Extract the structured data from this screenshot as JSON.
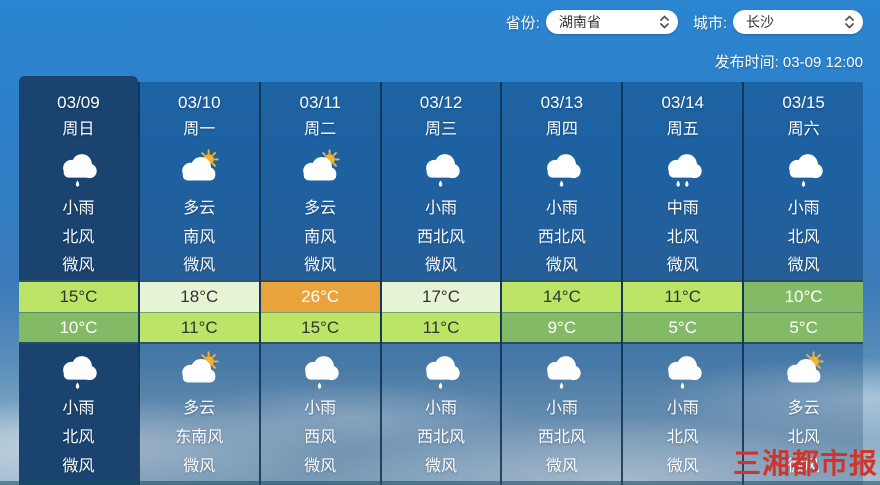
{
  "header": {
    "province_label": "省份:",
    "province_value": "湖南省",
    "city_label": "城市:",
    "city_value": "长沙",
    "dropdown_icon": "chevron-up-down",
    "publish_label": "发布时间:",
    "publish_value": "03-09 12:00"
  },
  "watermark": "三湘都市报",
  "colors": {
    "accent_red": "#d2342a",
    "today_column": "#1a436f",
    "temp_pale": "#e7f3d5",
    "temp_light": "#bce467",
    "temp_medium": "#83ba66",
    "temp_orange": "#e8a33d"
  },
  "forecast": {
    "days": [
      {
        "date": "03/09",
        "week": "周日",
        "today": true,
        "day": {
          "icon": "light-rain",
          "condition": "小雨",
          "wind_direction": "北风",
          "wind_power": "微风"
        },
        "high": "15°C",
        "high_level": "light",
        "low": "10°C",
        "low_level": "medium",
        "night": {
          "icon": "light-rain",
          "condition": "小雨",
          "wind_direction": "北风",
          "wind_power": "微风"
        }
      },
      {
        "date": "03/10",
        "week": "周一",
        "today": false,
        "day": {
          "icon": "partly-cloudy",
          "condition": "多云",
          "wind_direction": "南风",
          "wind_power": "微风"
        },
        "high": "18°C",
        "high_level": "pale",
        "low": "11°C",
        "low_level": "light",
        "night": {
          "icon": "partly-cloudy",
          "condition": "多云",
          "wind_direction": "东南风",
          "wind_power": "微风"
        }
      },
      {
        "date": "03/11",
        "week": "周二",
        "today": false,
        "day": {
          "icon": "partly-cloudy",
          "condition": "多云",
          "wind_direction": "南风",
          "wind_power": "微风"
        },
        "high": "26°C",
        "high_level": "orange",
        "low": "15°C",
        "low_level": "light",
        "night": {
          "icon": "light-rain",
          "condition": "小雨",
          "wind_direction": "西风",
          "wind_power": "微风"
        }
      },
      {
        "date": "03/12",
        "week": "周三",
        "today": false,
        "day": {
          "icon": "light-rain",
          "condition": "小雨",
          "wind_direction": "西北风",
          "wind_power": "微风"
        },
        "high": "17°C",
        "high_level": "pale",
        "low": "11°C",
        "low_level": "light",
        "night": {
          "icon": "light-rain",
          "condition": "小雨",
          "wind_direction": "西北风",
          "wind_power": "微风"
        }
      },
      {
        "date": "03/13",
        "week": "周四",
        "today": false,
        "day": {
          "icon": "light-rain",
          "condition": "小雨",
          "wind_direction": "西北风",
          "wind_power": "微风"
        },
        "high": "14°C",
        "high_level": "light",
        "low": "9°C",
        "low_level": "medium",
        "night": {
          "icon": "light-rain",
          "condition": "小雨",
          "wind_direction": "西北风",
          "wind_power": "微风"
        }
      },
      {
        "date": "03/14",
        "week": "周五",
        "today": false,
        "day": {
          "icon": "moderate-rain",
          "condition": "中雨",
          "wind_direction": "北风",
          "wind_power": "微风"
        },
        "high": "11°C",
        "high_level": "light",
        "low": "5°C",
        "low_level": "medium",
        "night": {
          "icon": "light-rain",
          "condition": "小雨",
          "wind_direction": "北风",
          "wind_power": "微风"
        }
      },
      {
        "date": "03/15",
        "week": "周六",
        "today": false,
        "day": {
          "icon": "light-rain",
          "condition": "小雨",
          "wind_direction": "北风",
          "wind_power": "微风"
        },
        "high": "10°C",
        "high_level": "medium",
        "low": "5°C",
        "low_level": "medium",
        "night": {
          "icon": "partly-cloudy",
          "condition": "多云",
          "wind_direction": "北风",
          "wind_power": "微风"
        }
      }
    ]
  }
}
